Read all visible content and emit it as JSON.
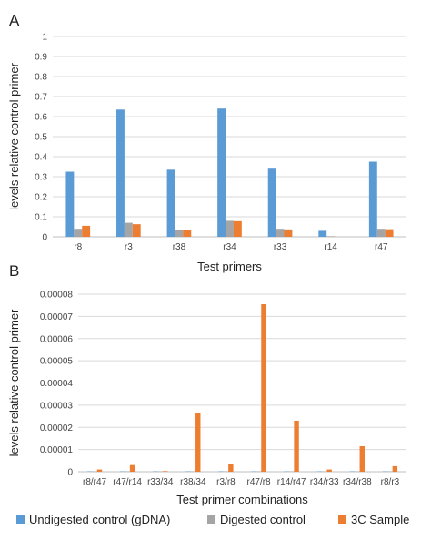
{
  "panels": {
    "a_label": "A",
    "b_label": "B"
  },
  "legend": {
    "items": [
      {
        "label": "Undigested control (gDNA)",
        "color": "#5b9bd5"
      },
      {
        "label": "Digested control",
        "color": "#a5a5a5"
      },
      {
        "label": "3C Sample",
        "color": "#ed7d31"
      }
    ]
  },
  "chart_data": [
    {
      "type": "bar",
      "panel": "A",
      "categories": [
        "r8",
        "r3",
        "r38",
        "r34",
        "r33",
        "r14",
        "r47"
      ],
      "series": [
        {
          "name": "Undigested control (gDNA)",
          "color": "#5b9bd5",
          "values": [
            0.325,
            0.635,
            0.335,
            0.64,
            0.34,
            0.03,
            0.375
          ]
        },
        {
          "name": "Digested control",
          "color": "#a5a5a5",
          "values": [
            0.04,
            0.07,
            0.035,
            0.08,
            0.04,
            0.003,
            0.04
          ]
        },
        {
          "name": "3C Sample",
          "color": "#ed7d31",
          "values": [
            0.055,
            0.063,
            0.035,
            0.078,
            0.037,
            0.0,
            0.038
          ]
        }
      ],
      "xlabel": "Test primers",
      "ylabel": "levels relative control primer",
      "ylim": [
        0,
        1
      ],
      "yticks": [
        "0",
        "0.1",
        "0.2",
        "0.3",
        "0.4",
        "0.5",
        "0.6",
        "0.7",
        "0.8",
        "0.9",
        "1"
      ],
      "grid": true
    },
    {
      "type": "bar",
      "panel": "B",
      "categories": [
        "r8/r47",
        "r47/r14",
        "r33/34",
        "r38/34",
        "r3/r8",
        "r47/r8",
        "r14/r47",
        "r34/r33",
        "r34/r38",
        "r8/r3"
      ],
      "series": [
        {
          "name": "Undigested control (gDNA)",
          "color": "#5b9bd5",
          "values": [
            2e-07,
            2e-07,
            2e-07,
            2e-07,
            2e-07,
            2e-07,
            2e-07,
            2e-07,
            2e-07,
            2e-07
          ]
        },
        {
          "name": "Digested control",
          "color": "#a5a5a5",
          "values": [
            2e-07,
            2e-07,
            2e-07,
            2e-07,
            2e-07,
            2e-07,
            2e-07,
            2e-07,
            2e-07,
            2e-07
          ]
        },
        {
          "name": "3C Sample",
          "color": "#ed7d31",
          "values": [
            1e-06,
            3e-06,
            3e-07,
            2.65e-05,
            3.5e-06,
            7.55e-05,
            2.3e-05,
            1e-06,
            1.15e-05,
            2.5e-06
          ]
        }
      ],
      "xlabel": "Test primer combinations",
      "ylabel": "levels relative control primer",
      "ylim": [
        0,
        8e-05
      ],
      "yticks": [
        "0",
        "0.00001",
        "0.00002",
        "0.00003",
        "0.00004",
        "0.00005",
        "0.00006",
        "0.00007",
        "0.00008"
      ],
      "grid": true
    }
  ]
}
